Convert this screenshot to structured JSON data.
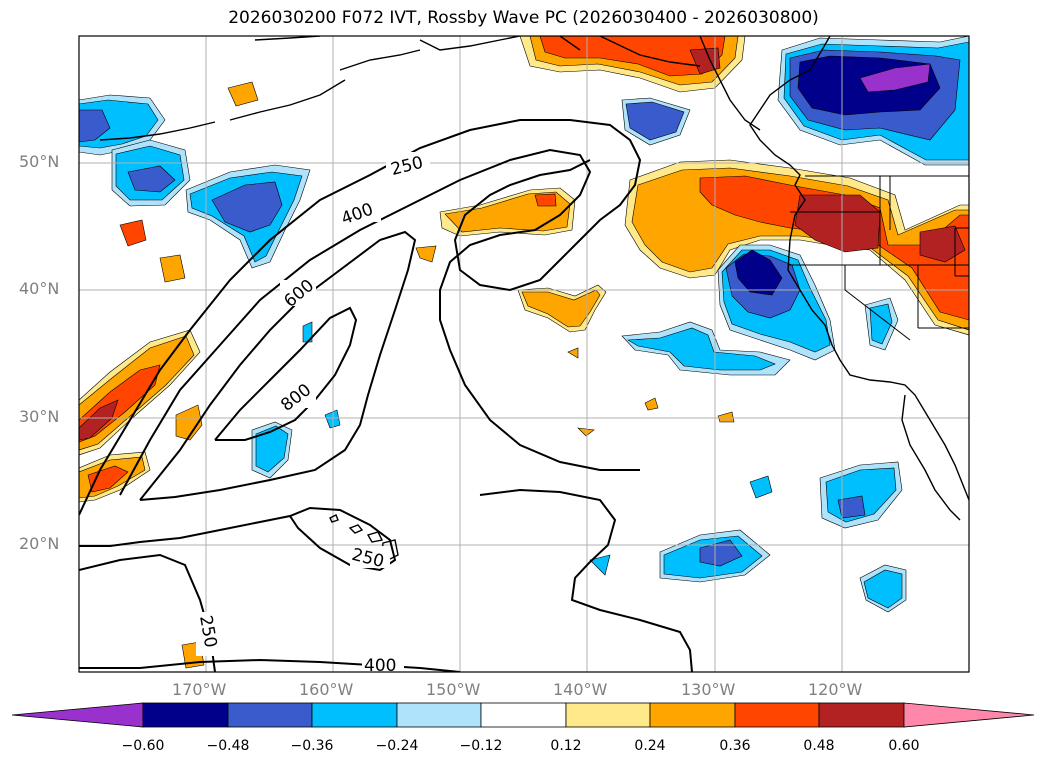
{
  "title": "2026030200 F072 IVT, Rossby Wave PC (2026030400 - 2026030800)",
  "axes": {
    "lat_labels": [
      "50°N",
      "40°N",
      "30°N",
      "20°N"
    ],
    "lon_labels": [
      "170°W",
      "160°W",
      "150°W",
      "140°W",
      "130°W",
      "120°W"
    ]
  },
  "contour_labels": [
    "250",
    "400",
    "600",
    "800",
    "250",
    "250",
    "400"
  ],
  "colorbar": {
    "ticks": [
      "−0.60",
      "−0.48",
      "−0.36",
      "−0.24",
      "−0.12",
      "0.12",
      "0.24",
      "0.36",
      "0.48",
      "0.60"
    ],
    "colors": [
      "#9932cc",
      "#00008b",
      "#3a5bcc",
      "#00bfff",
      "#aee3fb",
      "#ffffff",
      "#ffe98a",
      "#ffa500",
      "#ff4500",
      "#b22222",
      "#ff88aa"
    ]
  },
  "chart_data": {
    "type": "heatmap",
    "title": "2026030200 F072 IVT, Rossby Wave PC (2026030400 - 2026030800)",
    "xlabel": "",
    "ylabel": "",
    "lon_range": [
      "180°W",
      "110°W"
    ],
    "lat_range": [
      "10°N",
      "60°N"
    ],
    "filled_field": "Rossby Wave PC",
    "contour_field": "IVT",
    "contour_levels": [
      250,
      400,
      600,
      800
    ],
    "color_levels": [
      -0.6,
      -0.48,
      -0.36,
      -0.24,
      -0.12,
      0.12,
      0.24,
      0.36,
      0.48,
      0.6
    ],
    "grid": true
  }
}
